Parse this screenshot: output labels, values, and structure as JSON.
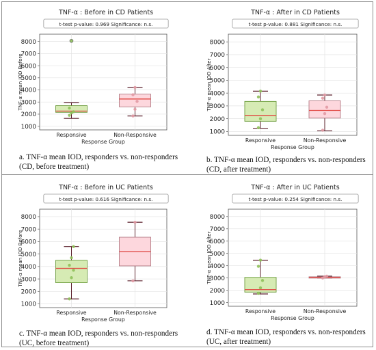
{
  "colors": {
    "responsive_fill": "#d6ebb4",
    "responsive_edge": "#6a9a3a",
    "responsive_points": "#8fc15a",
    "nonresponsive_fill": "#fdd7dd",
    "nonresponsive_edge": "#b37b84",
    "nonresponsive_points": "#e29aa4",
    "median": "#e0443f",
    "whisker": "#5a1f2a"
  },
  "chart_data": [
    {
      "type": "box",
      "title": "TNF-α : Before in CD Patients",
      "stats_box": "t-test    p-value: 0.969    Significance: n.s.",
      "xlabel": "Response Group",
      "ylabel": "TNF-α mean IOD Before",
      "categories": [
        "Responsive",
        "Non-Responsive"
      ],
      "ylim": [
        700,
        8600
      ],
      "yticks": [
        1000,
        2000,
        3000,
        4000,
        5000,
        6000,
        7000,
        8000
      ],
      "grid": true,
      "boxes": [
        {
          "name": "Responsive",
          "whislo": 1650,
          "q1": 2150,
          "med": 2250,
          "q3": 2700,
          "whishi": 2950,
          "fliers": [
            8050
          ],
          "points": [
            1900,
            2100,
            2200,
            2500,
            8050
          ]
        },
        {
          "name": "Non-Responsive",
          "whislo": 1850,
          "q1": 2600,
          "med": 3250,
          "q3": 3650,
          "whishi": 4200,
          "fliers": [],
          "points": [
            1850,
            2400,
            3050,
            3600,
            4200
          ]
        }
      ],
      "caption_lines": [
        "a. TNF-α  mean IOD, responders vs. non-responders",
        "(CD, before treatment)"
      ]
    },
    {
      "type": "box",
      "title": "TNF-α : After in CD Patients",
      "stats_box": "t-test    p-value: 0.881    Significance: n.s.",
      "xlabel": "Response Group",
      "ylabel": "TNF-α mean IOD After",
      "categories": [
        "Responsive",
        "Non-Responsive"
      ],
      "ylim": [
        700,
        8600
      ],
      "yticks": [
        1000,
        2000,
        3000,
        4000,
        5000,
        6000,
        7000,
        8000
      ],
      "grid": true,
      "boxes": [
        {
          "name": "Responsive",
          "whislo": 1250,
          "q1": 1800,
          "med": 2250,
          "q3": 3350,
          "whishi": 4150,
          "fliers": [],
          "points": [
            1300,
            2000,
            2700,
            3700,
            4150
          ]
        },
        {
          "name": "Non-Responsive",
          "whislo": 1050,
          "q1": 2050,
          "med": 2650,
          "q3": 3400,
          "whishi": 3850,
          "fliers": [],
          "points": [
            1100,
            2400,
            2900,
            3600,
            3850
          ]
        }
      ],
      "caption_lines": [
        "b. TNF-α  mean IOD, responders vs. non-responders",
        "(CD, after treatment)"
      ]
    },
    {
      "type": "box",
      "title": "TNF-α : Before in UC Patients",
      "stats_box": "t-test    p-value: 0.616    Significance: n.s.",
      "xlabel": "Response Group",
      "ylabel": "TNF-α mean IOD Before",
      "categories": [
        "Responsive",
        "Non-Responsive"
      ],
      "ylim": [
        700,
        8600
      ],
      "yticks": [
        1000,
        2000,
        3000,
        4000,
        5000,
        6000,
        7000,
        8000
      ],
      "grid": true,
      "boxes": [
        {
          "name": "Responsive",
          "whislo": 1400,
          "q1": 2700,
          "med": 3850,
          "q3": 4500,
          "whishi": 5600,
          "fliers": [],
          "points": [
            1400,
            3100,
            3700,
            4100,
            4700,
            5600
          ]
        },
        {
          "name": "Non-Responsive",
          "whislo": 2850,
          "q1": 4050,
          "med": 5200,
          "q3": 6350,
          "whishi": 7550,
          "fliers": [],
          "points": [
            2850,
            7550
          ]
        }
      ],
      "caption_lines": [
        "c. TNF-α  mean IOD, responders vs. non-responders",
        "(UC, before treatment)"
      ]
    },
    {
      "type": "box",
      "title": "TNF-α : After in UC Patients",
      "stats_box": "t-test    p-value: 0.254    Significance: n.s.",
      "xlabel": "Response Group",
      "ylabel": "TNF-α mean IOD After",
      "categories": [
        "Responsive",
        "Non-Responsive"
      ],
      "ylim": [
        700,
        8600
      ],
      "yticks": [
        1000,
        2000,
        3000,
        4000,
        5000,
        6000,
        7000,
        8000
      ],
      "grid": true,
      "boxes": [
        {
          "name": "Responsive",
          "whislo": 1700,
          "q1": 1850,
          "med": 2050,
          "q3": 3050,
          "whishi": 4450,
          "fliers": [],
          "points": [
            1750,
            2200,
            2800,
            3950,
            4450
          ]
        },
        {
          "name": "Non-Responsive",
          "whislo": 3000,
          "q1": 3000,
          "med": 3050,
          "q3": 3100,
          "whishi": 3150,
          "fliers": [],
          "points": [
            3000,
            3100,
            3150
          ]
        }
      ],
      "caption_lines": [
        "d. TNF-α  mean IOD, responders vs. non-responders",
        "(UC, after treatment)"
      ]
    }
  ]
}
